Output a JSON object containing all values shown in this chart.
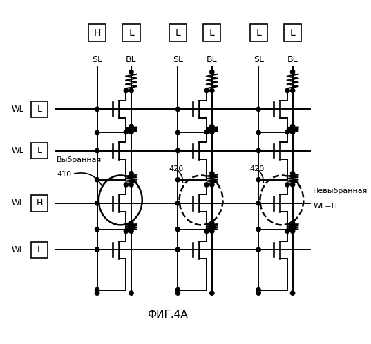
{
  "fig_label": "ФИГ.4А",
  "top_box_labels": [
    "H",
    "L",
    "L",
    "L",
    "L",
    "L"
  ],
  "sl_bl_labels": [
    "SL",
    "BL",
    "SL",
    "BL",
    "SL",
    "BL"
  ],
  "wl_labels": [
    "L",
    "L",
    "H",
    "L"
  ],
  "label_selected": "Выбранная",
  "label_410": "410",
  "label_420": "420",
  "label_unselected1": "Невыбранная",
  "label_unselected2": "WL=H",
  "figsize": [
    5.37,
    4.99
  ],
  "dpi": 100
}
